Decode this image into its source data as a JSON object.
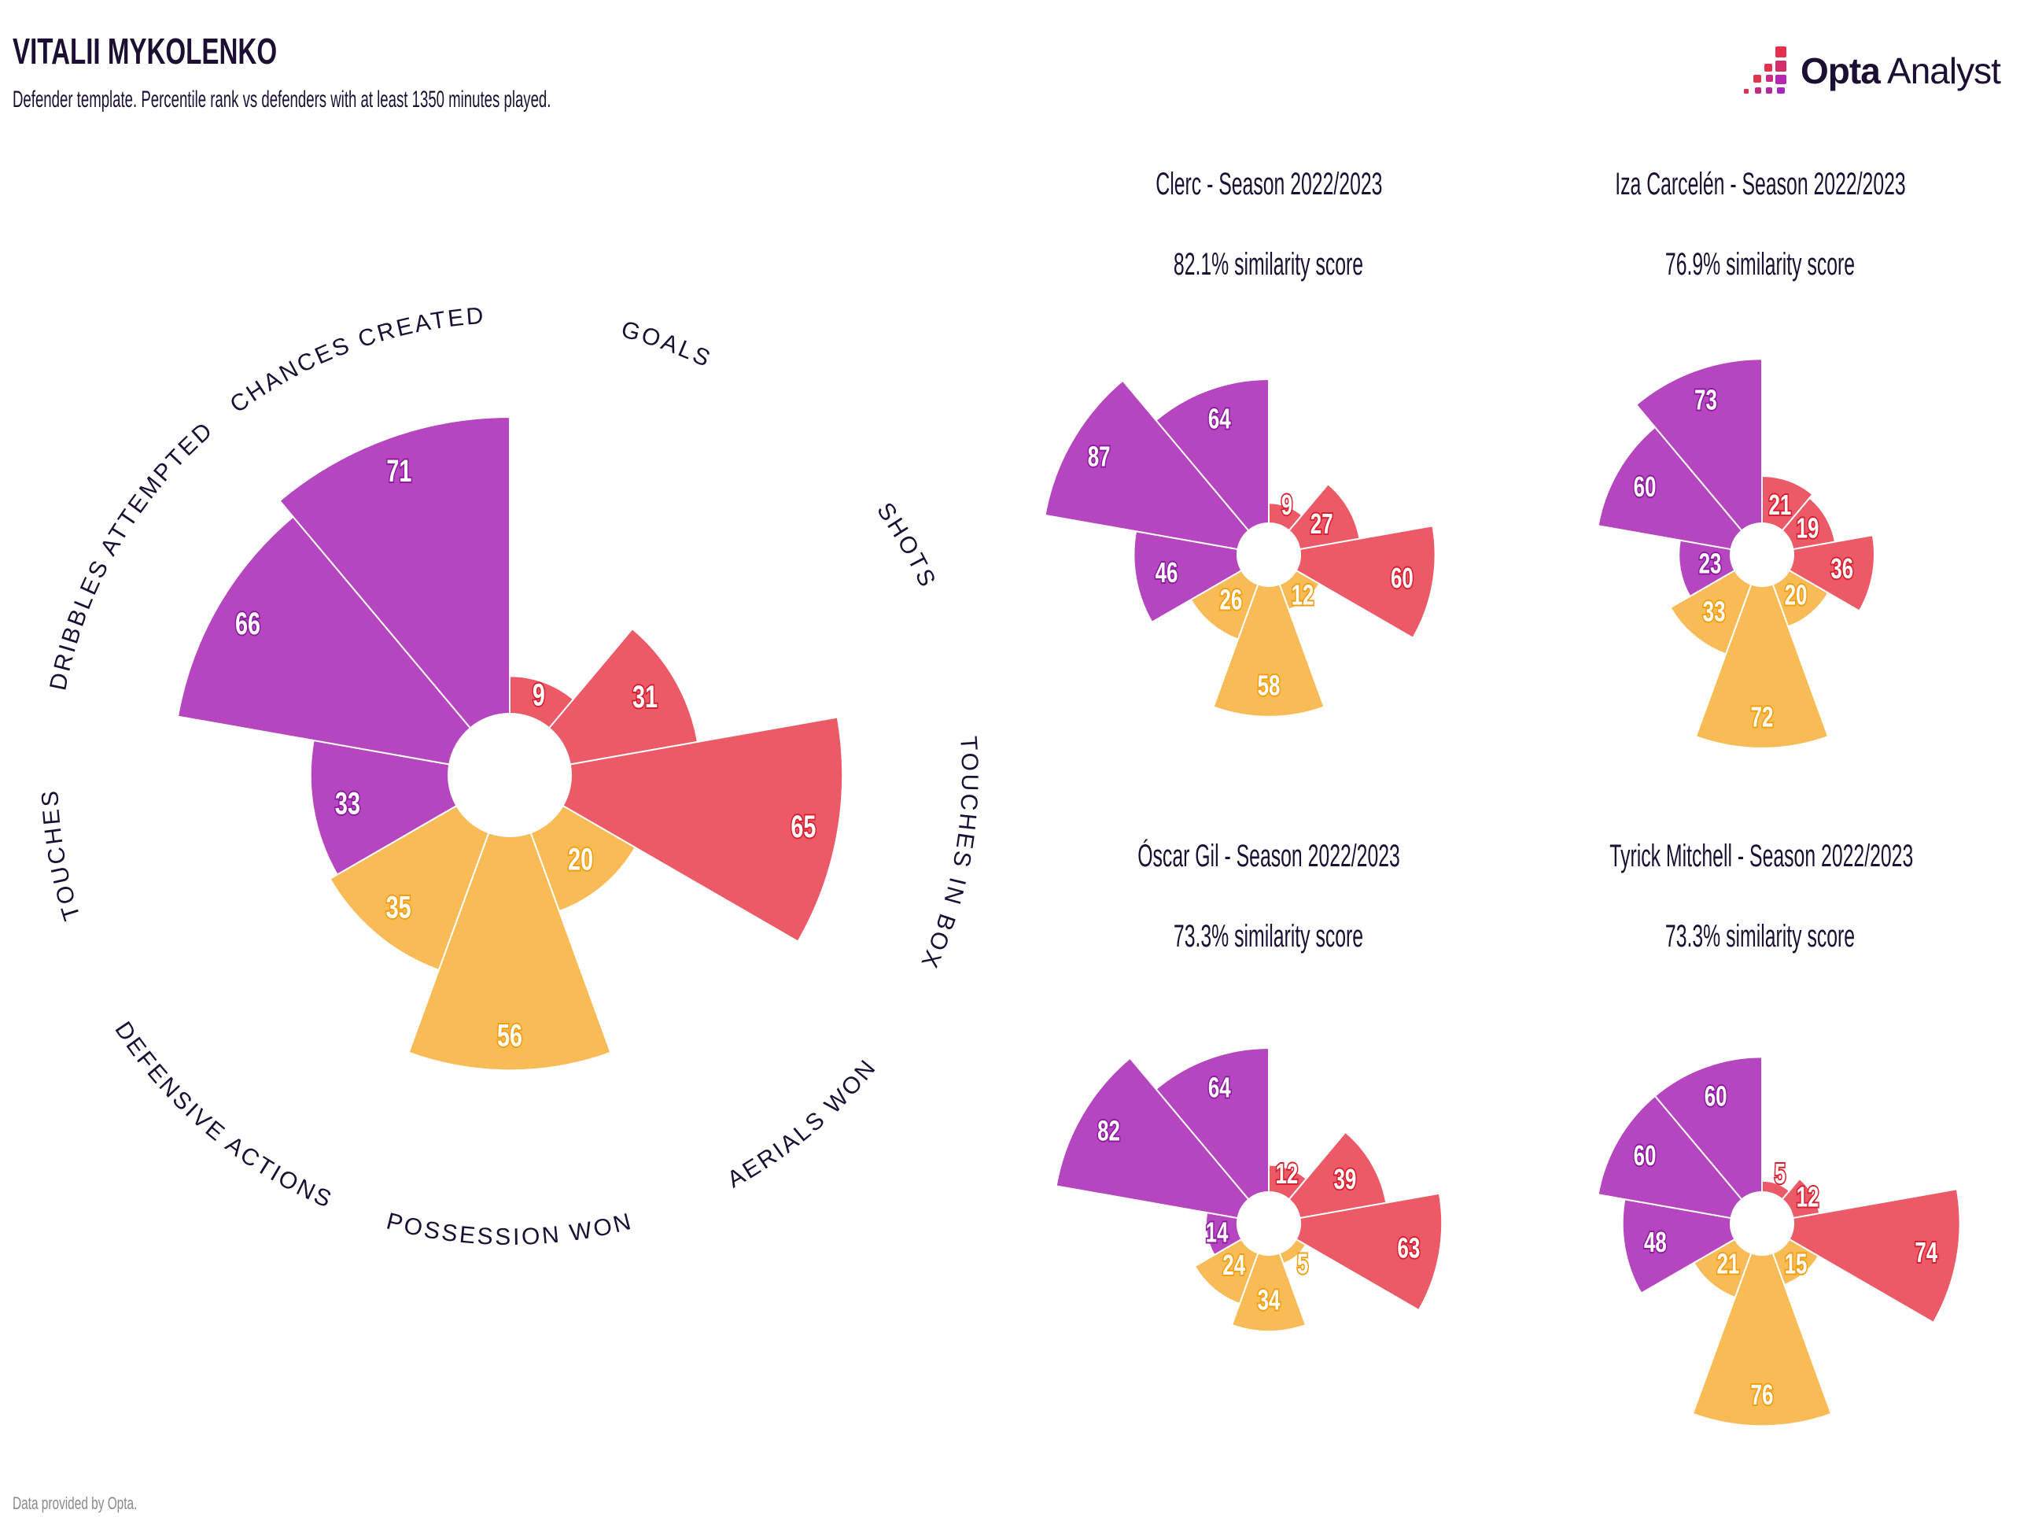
{
  "header": {
    "title": "VITALII MYKOLENKO",
    "subtitle": "Defender template. Percentile rank vs defenders with at least 1350 minutes played."
  },
  "logo": {
    "icon": "opta-bars-icon",
    "brand_bold": "Opta",
    "brand_light": "Analyst"
  },
  "footer": "Data provided by Opta.",
  "colors": {
    "attack": "#eb5a66",
    "defence": "#f8bb55",
    "possession": "#b646bf",
    "attack_stroke": "#d81f30",
    "defence_stroke": "#f19e10",
    "possession_stroke": "#8d1aa0"
  },
  "chart_data": [
    {
      "type": "polar-bar",
      "title": "Vitalii Mykolenko",
      "range": [
        0,
        100
      ],
      "categories": [
        "GOALS",
        "SHOTS",
        "TOUCHES IN BOX",
        "AERIALS WON",
        "POSSESSION WON",
        "DEFENSIVE ACTIONS",
        "TOUCHES",
        "DRIBBLES ATTEMPTED",
        "CHANCES CREATED"
      ],
      "groups": [
        "attack",
        "attack",
        "attack",
        "defence",
        "defence",
        "defence",
        "possession",
        "possession",
        "possession"
      ],
      "values": [
        9,
        31,
        65,
        20,
        56,
        35,
        33,
        66,
        71
      ]
    },
    {
      "type": "polar-bar",
      "title": "Clerc - Season 2022/2023",
      "similarity": "82.1% similarity score",
      "range": [
        0,
        100
      ],
      "categories": [
        "GOALS",
        "SHOTS",
        "TOUCHES IN BOX",
        "AERIALS WON",
        "POSSESSION WON",
        "DEFENSIVE ACTIONS",
        "TOUCHES",
        "DRIBBLES ATTEMPTED",
        "CHANCES CREATED"
      ],
      "values": [
        9,
        27,
        60,
        12,
        58,
        26,
        46,
        87,
        64
      ]
    },
    {
      "type": "polar-bar",
      "title": "Iza Carcelén - Season 2022/2023",
      "similarity": "76.9% similarity score",
      "range": [
        0,
        100
      ],
      "categories": [
        "GOALS",
        "SHOTS",
        "TOUCHES IN BOX",
        "AERIALS WON",
        "POSSESSION WON",
        "DEFENSIVE ACTIONS",
        "TOUCHES",
        "DRIBBLES ATTEMPTED",
        "CHANCES CREATED"
      ],
      "values": [
        21,
        19,
        36,
        20,
        72,
        33,
        23,
        60,
        73
      ]
    },
    {
      "type": "polar-bar",
      "title": "Óscar Gil - Season 2022/2023",
      "similarity": "73.3% similarity score",
      "range": [
        0,
        100
      ],
      "categories": [
        "GOALS",
        "SHOTS",
        "TOUCHES IN BOX",
        "AERIALS WON",
        "POSSESSION WON",
        "DEFENSIVE ACTIONS",
        "TOUCHES",
        "DRIBBLES ATTEMPTED",
        "CHANCES CREATED"
      ],
      "values": [
        12,
        39,
        63,
        5,
        34,
        24,
        14,
        82,
        64
      ]
    },
    {
      "type": "polar-bar",
      "title": "Tyrick Mitchell - Season 2022/2023",
      "similarity": "73.3% similarity score",
      "range": [
        0,
        100
      ],
      "categories": [
        "GOALS",
        "SHOTS",
        "TOUCHES IN BOX",
        "AERIALS WON",
        "POSSESSION WON",
        "DEFENSIVE ACTIONS",
        "TOUCHES",
        "DRIBBLES ATTEMPTED",
        "CHANCES CREATED"
      ],
      "values": [
        5,
        12,
        74,
        15,
        76,
        21,
        48,
        60,
        60
      ]
    }
  ]
}
